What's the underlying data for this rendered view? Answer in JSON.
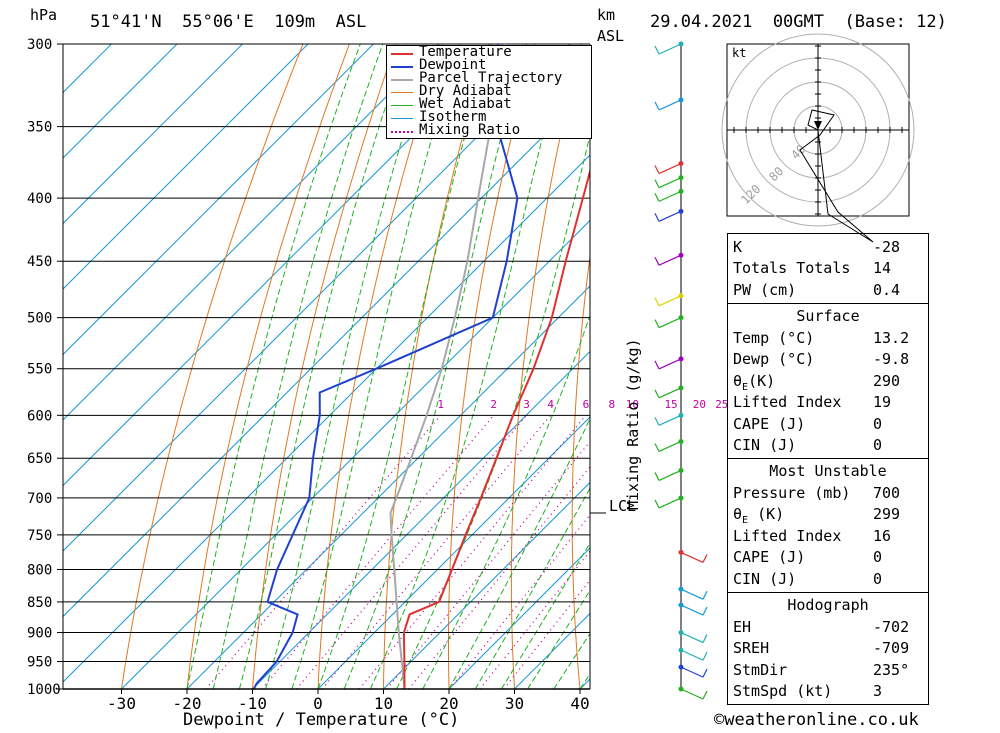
{
  "header": {
    "pressure_unit": "hPa",
    "location": "51°41'N  55°06'E  109m  ASL",
    "km_label": "km",
    "asl_label": "ASL",
    "datetime": "29.04.2021  00GMT  (Base: 12)"
  },
  "credit": "©weatheronline.co.uk",
  "chart_data": {
    "type": "line",
    "diagram": "skew-T log-p",
    "xlabel": "Dewpoint / Temperature (°C)",
    "ylabel": "hPa",
    "mixing_ratio_axis_label": "Mixing Ratio (g/kg)",
    "x_ticks": [
      -30,
      -20,
      -10,
      0,
      10,
      20,
      30,
      40
    ],
    "y_ticks": [
      300,
      350,
      400,
      450,
      500,
      550,
      600,
      650,
      700,
      750,
      800,
      850,
      900,
      950,
      1000
    ],
    "mixing_ratio_labels": [
      "1",
      "2",
      "3",
      "4",
      "6",
      "8",
      "10",
      "15",
      "20",
      "25"
    ],
    "mixing_ratio_values": [
      1,
      2,
      3,
      4,
      6,
      8,
      10,
      15,
      20,
      25
    ],
    "lcl_label": "LCL",
    "lcl_pressure": 720,
    "legend": [
      "Temperature",
      "Dewpoint",
      "Parcel Trajectory",
      "Dry Adiabat",
      "Wet Adiabat",
      "Isotherm",
      "Mixing Ratio"
    ],
    "colors": {
      "temperature": "#e03030",
      "dewpoint": "#2040d0",
      "parcel": "#a8a8a8",
      "dry_adiabat": "#e07820",
      "wet_adiabat": "#20b020",
      "isotherm": "#1898d8",
      "mixing_ratio": "#c000a0"
    },
    "temperature": [
      {
        "p": 1000,
        "t": 13.2
      },
      {
        "p": 950,
        "t": 9.0
      },
      {
        "p": 900,
        "t": 4.5
      },
      {
        "p": 870,
        "t": 2.6
      },
      {
        "p": 850,
        "t": 5.2
      },
      {
        "p": 800,
        "t": 2.2
      },
      {
        "p": 750,
        "t": -1.0
      },
      {
        "p": 700,
        "t": -4.3
      },
      {
        "p": 650,
        "t": -8.0
      },
      {
        "p": 600,
        "t": -12.0
      },
      {
        "p": 550,
        "t": -16.0
      },
      {
        "p": 500,
        "t": -21.0
      },
      {
        "p": 450,
        "t": -27.5
      },
      {
        "p": 400,
        "t": -34.5
      },
      {
        "p": 350,
        "t": -42.5
      },
      {
        "p": 300,
        "t": -51.0
      }
    ],
    "dewpoint": [
      {
        "p": 1000,
        "t": -9.8
      },
      {
        "p": 990,
        "t": -10.2
      },
      {
        "p": 950,
        "t": -10.5
      },
      {
        "p": 900,
        "t": -12.5
      },
      {
        "p": 870,
        "t": -14.5
      },
      {
        "p": 850,
        "t": -21.0
      },
      {
        "p": 800,
        "t": -24.5
      },
      {
        "p": 700,
        "t": -30.5
      },
      {
        "p": 650,
        "t": -36.0
      },
      {
        "p": 600,
        "t": -41.5
      },
      {
        "p": 575,
        "t": -45.0
      },
      {
        "p": 550,
        "t": -40.0
      },
      {
        "p": 500,
        "t": -30.0
      },
      {
        "p": 450,
        "t": -36.5
      },
      {
        "p": 400,
        "t": -44.5
      },
      {
        "p": 350,
        "t": -58.5
      },
      {
        "p": 300,
        "t": -71.0
      }
    ],
    "parcel": [
      {
        "p": 1000,
        "t": 13.2
      },
      {
        "p": 950,
        "t": 8.6
      },
      {
        "p": 900,
        "t": 3.7
      },
      {
        "p": 850,
        "t": -1.3
      },
      {
        "p": 800,
        "t": -6.6
      },
      {
        "p": 750,
        "t": -12.3
      },
      {
        "p": 720,
        "t": -15.8
      },
      {
        "p": 700,
        "t": -17.2
      },
      {
        "p": 650,
        "t": -21.0
      },
      {
        "p": 600,
        "t": -25.2
      },
      {
        "p": 550,
        "t": -30.0
      },
      {
        "p": 500,
        "t": -35.8
      },
      {
        "p": 450,
        "t": -42.5
      },
      {
        "p": 400,
        "t": -50.5
      },
      {
        "p": 350,
        "t": -59.5
      },
      {
        "p": 300,
        "t": -70.0
      }
    ]
  },
  "hodograph": {
    "unit_label": "kt",
    "ring_labels": [
      "40",
      "80",
      "120"
    ]
  },
  "wind_profile": [
    {
      "p": 1000,
      "color": "#20b020"
    },
    {
      "p": 960,
      "color": "#2040d0"
    },
    {
      "p": 930,
      "color": "#20b0b0"
    },
    {
      "p": 900,
      "color": "#20b0b0"
    },
    {
      "p": 855,
      "color": "#1898d8"
    },
    {
      "p": 830,
      "color": "#1898d8"
    },
    {
      "p": 775,
      "color": "#e03030"
    },
    {
      "p": 700,
      "color": "#20b020"
    },
    {
      "p": 665,
      "color": "#20b020"
    },
    {
      "p": 630,
      "color": "#20b020"
    },
    {
      "p": 600,
      "color": "#20b0b0"
    },
    {
      "p": 570,
      "color": "#20b020"
    },
    {
      "p": 540,
      "color": "#a000c0"
    },
    {
      "p": 500,
      "color": "#20b020"
    },
    {
      "p": 480,
      "color": "#e0d000"
    },
    {
      "p": 445,
      "color": "#a000c0"
    },
    {
      "p": 410,
      "color": "#2040d0"
    },
    {
      "p": 395,
      "color": "#20b020"
    },
    {
      "p": 385,
      "color": "#20b020"
    },
    {
      "p": 375,
      "color": "#e03030"
    },
    {
      "p": 333,
      "color": "#1898d8"
    },
    {
      "p": 300,
      "color": "#20b0b0"
    }
  ],
  "indices": {
    "k_label": "K",
    "k_value": "-28",
    "tt_label": "Totals Totals",
    "tt_value": "14",
    "pw_label": "PW (cm)",
    "pw_value": "0.4"
  },
  "surface": {
    "title": "Surface",
    "temp_label": "Temp (°C)",
    "temp_value": "13.2",
    "dewp_label": "Dewp (°C)",
    "dewp_value": "-9.8",
    "theta_label": "θ",
    "theta_sub": "E",
    "theta_unit": "(K)",
    "theta_value": "290",
    "li_label": "Lifted Index",
    "li_value": "19",
    "cape_label": "CAPE (J)",
    "cape_value": "0",
    "cin_label": "CIN (J)",
    "cin_value": "0"
  },
  "most_unstable": {
    "title": "Most Unstable",
    "pressure_label": "Pressure (mb)",
    "pressure_value": "700",
    "theta_label": "θ",
    "theta_sub": "E",
    "theta_unit": " (K)",
    "theta_value": "299",
    "li_label": "Lifted Index",
    "li_value": "16",
    "cape_label": "CAPE (J)",
    "cape_value": "0",
    "cin_label": "CIN (J)",
    "cin_value": "0"
  },
  "hodograph_stats": {
    "title": "Hodograph",
    "eh_label": "EH",
    "eh_value": "-702",
    "sreh_label": "SREH",
    "sreh_value": "-709",
    "stmdir_label": "StmDir",
    "stmdir_value": "235°",
    "stmspd_label": "StmSpd (kt)",
    "stmspd_value": "3"
  }
}
